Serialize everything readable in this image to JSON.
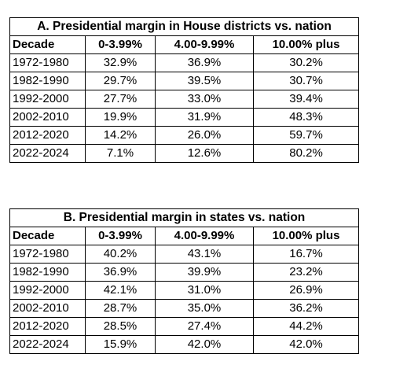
{
  "table_a": {
    "title": "A. Presidential margin in House districts vs. nation",
    "headers": [
      "Decade",
      "0-3.99%",
      "4.00-9.99%",
      "10.00% plus"
    ],
    "rows": [
      [
        "1972-1980",
        "32.9%",
        "36.9%",
        "30.2%"
      ],
      [
        "1982-1990",
        "29.7%",
        "39.5%",
        "30.7%"
      ],
      [
        "1992-2000",
        "27.7%",
        "33.0%",
        "39.4%"
      ],
      [
        "2002-2010",
        "19.9%",
        "31.9%",
        "48.3%"
      ],
      [
        "2012-2020",
        "14.2%",
        "26.0%",
        "59.7%"
      ],
      [
        "2022-2024",
        "7.1%",
        "12.6%",
        "80.2%"
      ]
    ]
  },
  "table_b": {
    "title": "B. Presidential margin in states vs. nation",
    "headers": [
      "Decade",
      "0-3.99%",
      "4.00-9.99%",
      "10.00% plus"
    ],
    "rows": [
      [
        "1972-1980",
        "40.2%",
        "43.1%",
        "16.7%"
      ],
      [
        "1982-1990",
        "36.9%",
        "39.9%",
        "23.2%"
      ],
      [
        "1992-2000",
        "42.1%",
        "31.0%",
        "26.9%"
      ],
      [
        "2002-2010",
        "28.7%",
        "35.0%",
        "36.2%"
      ],
      [
        "2012-2020",
        "28.5%",
        "27.4%",
        "44.2%"
      ],
      [
        "2022-2024",
        "15.9%",
        "42.0%",
        "42.0%"
      ]
    ]
  }
}
